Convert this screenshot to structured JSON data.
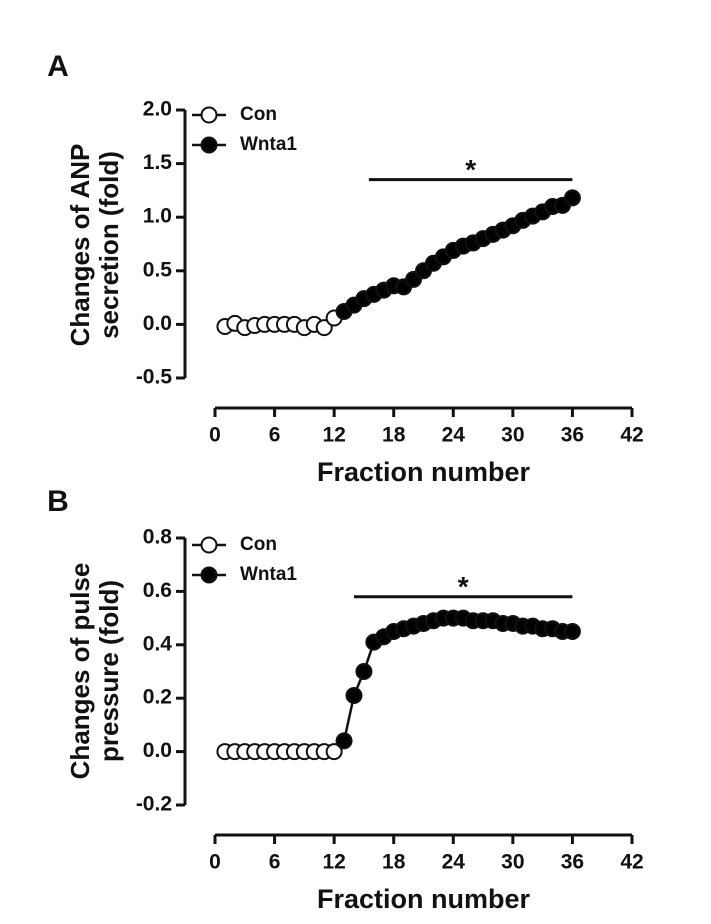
{
  "chart_data": [
    {
      "type": "line",
      "panel": "A",
      "ylabel": [
        "Changes of ANP",
        "secretion (fold)"
      ],
      "xlabel": "Fraction number",
      "xlim": [
        0,
        42
      ],
      "xticks": [
        0,
        6,
        12,
        18,
        24,
        30,
        36,
        42
      ],
      "ylim": [
        -0.5,
        2.0
      ],
      "yticks": [
        {
          "value": -0.5,
          "label": "-0.5"
        },
        {
          "value": 0,
          "label": "0.0"
        },
        {
          "value": 0.5,
          "label": "0.5"
        },
        {
          "value": 1,
          "label": "1.0"
        },
        {
          "value": 1.5,
          "label": "1.5"
        },
        {
          "value": 2,
          "label": "2.0"
        }
      ],
      "series": [
        {
          "name": "Con",
          "color": "#ffffff",
          "x": [
            1,
            2,
            3,
            4,
            5,
            6,
            7,
            8,
            9,
            10,
            11,
            12
          ],
          "values": [
            -0.02,
            0.01,
            -0.03,
            -0.01,
            0.0,
            0.0,
            0.0,
            0.0,
            -0.03,
            0.0,
            -0.03,
            0.06
          ]
        },
        {
          "name": "Wnta1",
          "color": "#000000",
          "x": [
            13,
            14,
            15,
            16,
            17,
            18,
            19,
            20,
            21,
            22,
            23,
            24,
            25,
            26,
            27,
            28,
            29,
            30,
            31,
            32,
            33,
            34,
            35,
            36
          ],
          "values": [
            0.12,
            0.18,
            0.24,
            0.28,
            0.32,
            0.36,
            0.35,
            0.42,
            0.5,
            0.57,
            0.63,
            0.69,
            0.73,
            0.76,
            0.8,
            0.84,
            0.88,
            0.92,
            0.97,
            1.01,
            1.05,
            1.1,
            1.11,
            1.18
          ]
        }
      ],
      "annotation": {
        "text": "*",
        "x": [
          15.5,
          36
        ],
        "y": 1.35
      }
    },
    {
      "type": "line",
      "panel": "B",
      "ylabel": [
        "Changes of pulse",
        "pressure (fold)"
      ],
      "xlabel": "Fraction number",
      "xlim": [
        0,
        42
      ],
      "xticks": [
        0,
        6,
        12,
        18,
        24,
        30,
        36,
        42
      ],
      "ylim": [
        -0.2,
        0.8
      ],
      "yticks": [
        {
          "value": -0.2,
          "label": "-0.2"
        },
        {
          "value": 0,
          "label": "0.0"
        },
        {
          "value": 0.2,
          "label": "0.2"
        },
        {
          "value": 0.4,
          "label": "0.4"
        },
        {
          "value": 0.6,
          "label": "0.6"
        },
        {
          "value": 0.8,
          "label": "0.8"
        }
      ],
      "series": [
        {
          "name": "Con",
          "color": "#ffffff",
          "x": [
            1,
            2,
            3,
            4,
            5,
            6,
            7,
            8,
            9,
            10,
            11,
            12
          ],
          "values": [
            0,
            0,
            0,
            0,
            0,
            0,
            0,
            0,
            0,
            0,
            0,
            0
          ]
        },
        {
          "name": "Wnta1",
          "color": "#000000",
          "x": [
            13,
            14,
            15,
            16,
            17,
            18,
            19,
            20,
            21,
            22,
            23,
            24,
            25,
            26,
            27,
            28,
            29,
            30,
            31,
            32,
            33,
            34,
            35,
            36
          ],
          "values": [
            0.04,
            0.21,
            0.3,
            0.41,
            0.43,
            0.45,
            0.46,
            0.47,
            0.48,
            0.49,
            0.5,
            0.5,
            0.5,
            0.49,
            0.49,
            0.49,
            0.48,
            0.48,
            0.47,
            0.47,
            0.46,
            0.46,
            0.45,
            0.45
          ]
        }
      ],
      "annotation": {
        "text": "*",
        "x": [
          14,
          36
        ],
        "y": 0.58
      }
    }
  ]
}
